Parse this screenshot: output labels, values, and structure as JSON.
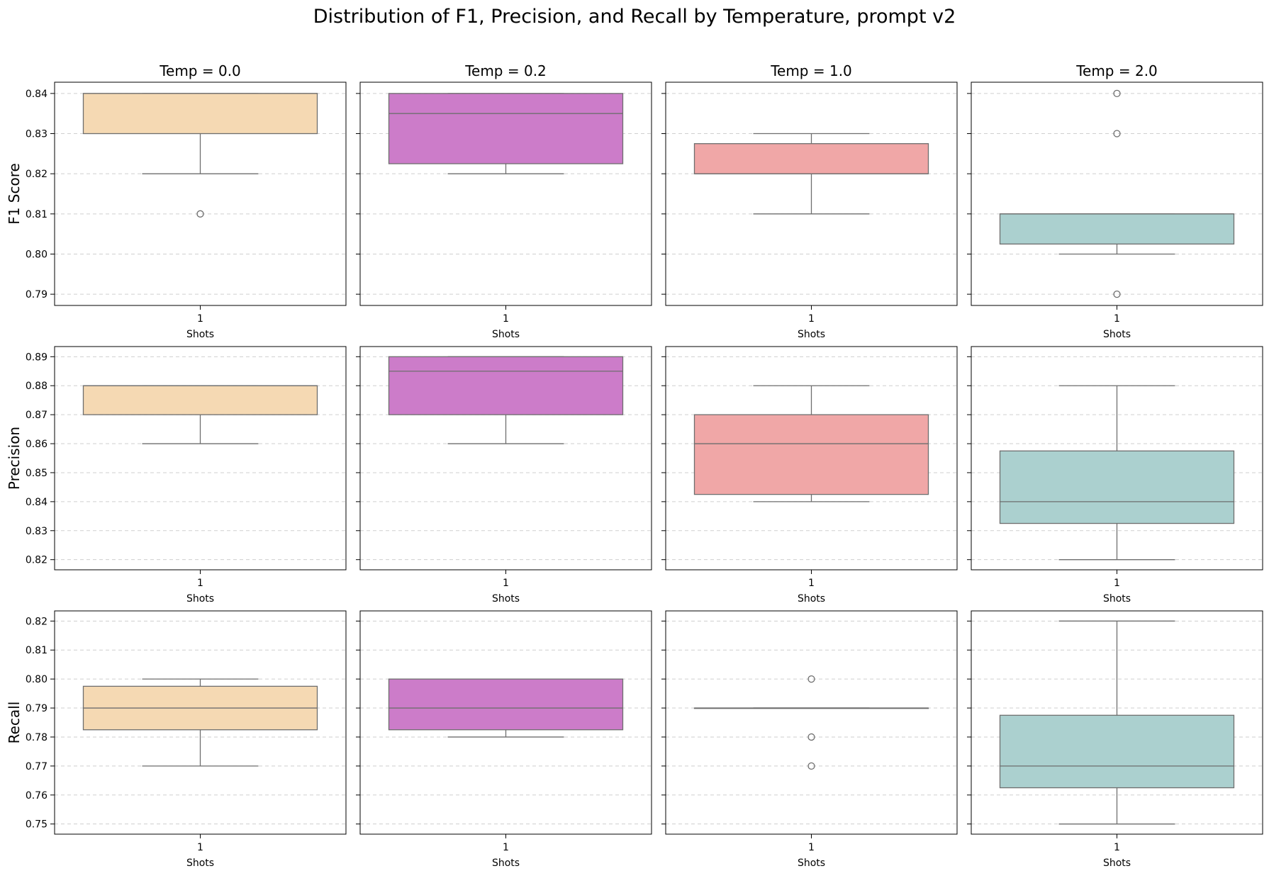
{
  "chart_data": {
    "type": "box",
    "title": "Distribution of F1, Precision, and Recall by Temperature, prompt v2",
    "columns": [
      "Temp = 0.0",
      "Temp = 0.2",
      "Temp = 1.0",
      "Temp = 2.0"
    ],
    "colors": [
      "#f5d9b3",
      "#cc7cc9",
      "#f0a7a7",
      "#abd0cf"
    ],
    "xlabel": "Shots",
    "x_category": "1",
    "grid": "y dashed",
    "rows": [
      {
        "ylabel": "F1 Score",
        "ylim": [
          0.7872,
          0.8428
        ],
        "ticks": [
          "0.79",
          "0.80",
          "0.81",
          "0.82",
          "0.83",
          "0.84"
        ],
        "boxes": [
          {
            "q1": 0.83,
            "median": 0.84,
            "q3": 0.84,
            "whisker_low": 0.82,
            "whisker_high": 0.84,
            "outliers": [
              0.81
            ]
          },
          {
            "q1": 0.8225,
            "median": 0.835,
            "q3": 0.84,
            "whisker_low": 0.82,
            "whisker_high": 0.84,
            "outliers": []
          },
          {
            "q1": 0.82,
            "median": 0.82,
            "q3": 0.8275,
            "whisker_low": 0.81,
            "whisker_high": 0.83,
            "outliers": []
          },
          {
            "q1": 0.8025,
            "median": 0.81,
            "q3": 0.81,
            "whisker_low": 0.8,
            "whisker_high": 0.81,
            "outliers": [
              0.84,
              0.83,
              0.79
            ]
          }
        ]
      },
      {
        "ylabel": "Precision",
        "ylim": [
          0.8165,
          0.8935
        ],
        "ticks": [
          "0.82",
          "0.83",
          "0.84",
          "0.85",
          "0.86",
          "0.87",
          "0.88",
          "0.89"
        ],
        "boxes": [
          {
            "q1": 0.87,
            "median": 0.88,
            "q3": 0.88,
            "whisker_low": 0.86,
            "whisker_high": 0.88,
            "outliers": []
          },
          {
            "q1": 0.87,
            "median": 0.885,
            "q3": 0.89,
            "whisker_low": 0.86,
            "whisker_high": 0.89,
            "outliers": []
          },
          {
            "q1": 0.8425,
            "median": 0.86,
            "q3": 0.87,
            "whisker_low": 0.84,
            "whisker_high": 0.88,
            "outliers": []
          },
          {
            "q1": 0.8325,
            "median": 0.84,
            "q3": 0.8575,
            "whisker_low": 0.82,
            "whisker_high": 0.88,
            "outliers": []
          }
        ]
      },
      {
        "ylabel": "Recall",
        "ylim": [
          0.7465,
          0.8235
        ],
        "ticks": [
          "0.75",
          "0.76",
          "0.77",
          "0.78",
          "0.79",
          "0.80",
          "0.81",
          "0.82"
        ],
        "boxes": [
          {
            "q1": 0.7825,
            "median": 0.79,
            "q3": 0.7975,
            "whisker_low": 0.77,
            "whisker_high": 0.8,
            "outliers": []
          },
          {
            "q1": 0.7825,
            "median": 0.79,
            "q3": 0.8,
            "whisker_low": 0.78,
            "whisker_high": 0.8,
            "outliers": []
          },
          {
            "q1": 0.79,
            "median": 0.79,
            "q3": 0.79,
            "whisker_low": 0.79,
            "whisker_high": 0.79,
            "outliers": [
              0.8,
              0.78,
              0.77
            ]
          },
          {
            "q1": 0.7625,
            "median": 0.77,
            "q3": 0.7875,
            "whisker_low": 0.75,
            "whisker_high": 0.82,
            "outliers": []
          }
        ]
      }
    ]
  }
}
